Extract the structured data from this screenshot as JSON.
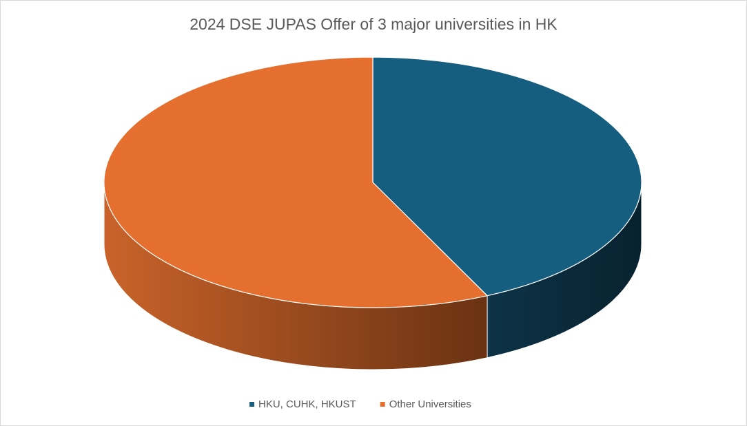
{
  "chart_data": {
    "type": "pie",
    "title": "2024 DSE JUPAS Offer of 3 major universities in HK",
    "categories": [
      "HKU, CUHK, HKUST",
      "Other Universities"
    ],
    "values": [
      43,
      57
    ],
    "colors": [
      "#165e80",
      "#e46f2e"
    ],
    "legend": "bottom"
  }
}
